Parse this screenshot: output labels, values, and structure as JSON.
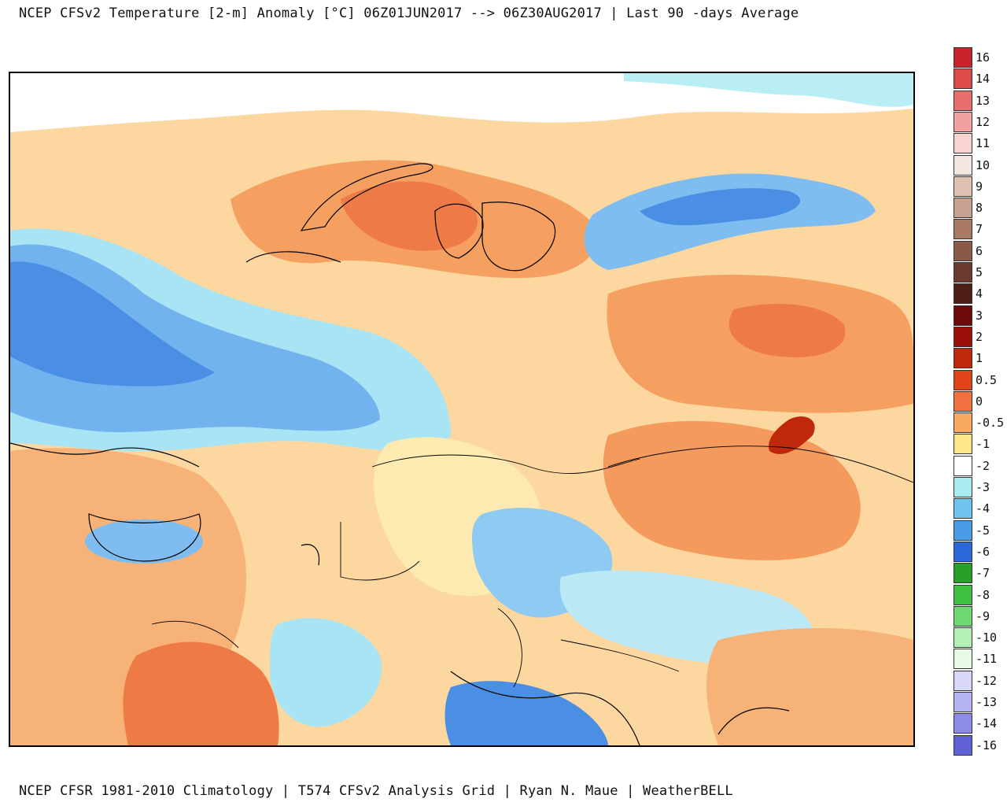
{
  "header": {
    "title": "NCEP CFSv2 Temperature [2-m] Anomaly  [°C] 06Z01JUN2017 --> 06Z30AUG2017 | Last 90 -days Average"
  },
  "footer": {
    "credits": "NCEP CFSR 1981-2010 Climatology | T574 CFSv2 Analysis Grid | Ryan N. Maue | WeatherBELL"
  },
  "map": {
    "region": "Eurasia",
    "variable": "2-m temperature anomaly"
  },
  "legend": {
    "unit": "°C",
    "entries": [
      {
        "label": "16",
        "color": "#c8232c"
      },
      {
        "label": "14",
        "color": "#dc4a4a"
      },
      {
        "label": "13",
        "color": "#e86e6e"
      },
      {
        "label": "12",
        "color": "#f3a0a0"
      },
      {
        "label": "11",
        "color": "#f8d4d0"
      },
      {
        "label": "10",
        "color": "#f2e6e0"
      },
      {
        "label": "9",
        "color": "#e0c0b0"
      },
      {
        "label": "8",
        "color": "#c8a090"
      },
      {
        "label": "7",
        "color": "#a87a66"
      },
      {
        "label": "6",
        "color": "#8a5a48"
      },
      {
        "label": "5",
        "color": "#6a3a2e"
      },
      {
        "label": "4",
        "color": "#4e1e16"
      },
      {
        "label": "3",
        "color": "#6e0a0a"
      },
      {
        "label": "2",
        "color": "#9a1008"
      },
      {
        "label": "1",
        "color": "#c0280c"
      },
      {
        "label": "0.5",
        "color": "#e04418"
      },
      {
        "label": "0",
        "color": "#f07040"
      },
      {
        "label": "-0.5",
        "color": "#f9a860"
      },
      {
        "label": "-1",
        "color": "#fde68a"
      },
      {
        "label": "-2",
        "color": "#ffffff"
      },
      {
        "label": "-3",
        "color": "#a8ecf2"
      },
      {
        "label": "-4",
        "color": "#70c4f0"
      },
      {
        "label": "-5",
        "color": "#4a9ce8"
      },
      {
        "label": "-6",
        "color": "#2a6ad8"
      },
      {
        "label": "-7",
        "color": "#28a028"
      },
      {
        "label": "-8",
        "color": "#40c040"
      },
      {
        "label": "-9",
        "color": "#70d870"
      },
      {
        "label": "-10",
        "color": "#b4f0b4"
      },
      {
        "label": "-11",
        "color": "#e6fae6"
      },
      {
        "label": "-12",
        "color": "#d8d8f8"
      },
      {
        "label": "-13",
        "color": "#b4b4f0"
      },
      {
        "label": "-14",
        "color": "#8c8ce8"
      },
      {
        "label": "-16",
        "color": "#6060d8"
      }
    ]
  }
}
